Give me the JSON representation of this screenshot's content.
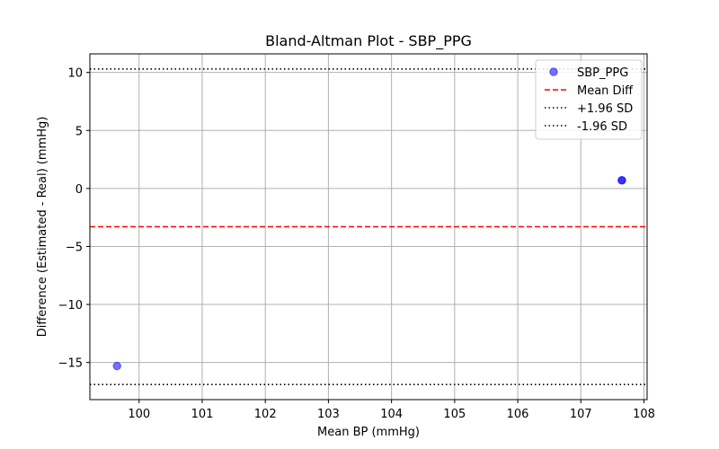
{
  "chart_data": {
    "type": "scatter",
    "title": "Bland-Altman Plot - SBP_PPG",
    "xlabel": "Mean BP (mmHg)",
    "ylabel": "Difference (Estimated - Real) (mmHg)",
    "xlim": [
      99.22,
      108.05
    ],
    "ylim": [
      -18.2,
      11.6
    ],
    "xticks": [
      100,
      101,
      102,
      103,
      104,
      105,
      106,
      107,
      108
    ],
    "yticks": [
      -15,
      -10,
      -5,
      0,
      5,
      10
    ],
    "grid": true,
    "legend_position": "top-right",
    "series": [
      {
        "name": "SBP_PPG",
        "color": "#0000ff",
        "opacity": 0.55,
        "points": [
          {
            "x": 99.65,
            "y": -15.3
          },
          {
            "x": 107.65,
            "y": 0.7
          },
          {
            "x": 107.65,
            "y": 0.7
          }
        ]
      }
    ],
    "reference_lines": [
      {
        "name": "Mean Diff",
        "y": -3.3,
        "color": "#ff0000",
        "style": "dashed"
      },
      {
        "name": "+1.96 SD",
        "y": 10.3,
        "color": "#000000",
        "style": "dotted"
      },
      {
        "name": "-1.96 SD",
        "y": -16.9,
        "color": "#000000",
        "style": "dotted"
      }
    ]
  }
}
